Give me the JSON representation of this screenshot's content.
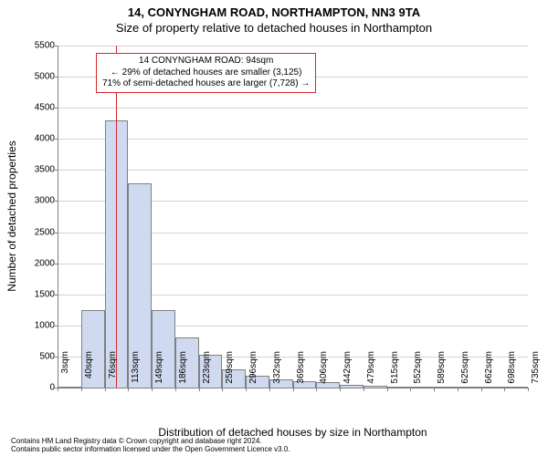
{
  "titles": {
    "main": "14, CONYNGHAM ROAD, NORTHAMPTON, NN3 9TA",
    "sub": "Size of property relative to detached houses in Northampton",
    "xaxis": "Distribution of detached houses by size in Northampton",
    "yaxis": "Number of detached properties"
  },
  "chart": {
    "type": "histogram",
    "ylim": [
      0,
      5500
    ],
    "ytick_step": 500,
    "xlim_idx": [
      0,
      20
    ],
    "x_tick_labels": [
      "3sqm",
      "40sqm",
      "76sqm",
      "113sqm",
      "149sqm",
      "186sqm",
      "223sqm",
      "259sqm",
      "296sqm",
      "332sqm",
      "369sqm",
      "406sqm",
      "442sqm",
      "479sqm",
      "515sqm",
      "552sqm",
      "589sqm",
      "625sqm",
      "662sqm",
      "698sqm",
      "735sqm"
    ],
    "bars": [
      {
        "v": 0
      },
      {
        "v": 1250
      },
      {
        "v": 4300
      },
      {
        "v": 3280
      },
      {
        "v": 1250
      },
      {
        "v": 800
      },
      {
        "v": 530
      },
      {
        "v": 300
      },
      {
        "v": 190
      },
      {
        "v": 130
      },
      {
        "v": 100
      },
      {
        "v": 90
      },
      {
        "v": 40
      },
      {
        "v": 30
      },
      {
        "v": 20
      },
      {
        "v": 15
      },
      {
        "v": 12
      },
      {
        "v": 10
      },
      {
        "v": 8
      },
      {
        "v": 7
      }
    ],
    "bar_fill": "#cfdaf0",
    "bar_border": "#808080",
    "grid_color": "#d3d3d3",
    "background": "#ffffff",
    "marker": {
      "position_sqm": 94,
      "color": "#d62728"
    }
  },
  "annotation": {
    "lines": [
      "14 CONYNGHAM ROAD: 94sqm",
      "← 29% of detached houses are smaller (3,125)",
      "71% of semi-detached houses are larger (7,728) →"
    ],
    "border_color": "#d62728",
    "bg": "#ffffff"
  },
  "attribution": {
    "line1": "Contains HM Land Registry data © Crown copyright and database right 2024.",
    "line2": "Contains public sector information licensed under the Open Government Licence v3.0."
  },
  "style": {
    "tick_fontsize": 10,
    "axis_title_fontsize": 12,
    "title_fontsize": 13
  }
}
